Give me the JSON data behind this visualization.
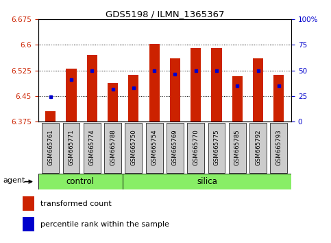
{
  "title": "GDS5198 / ILMN_1365367",
  "samples": [
    "GSM665761",
    "GSM665771",
    "GSM665774",
    "GSM665788",
    "GSM665750",
    "GSM665754",
    "GSM665769",
    "GSM665770",
    "GSM665775",
    "GSM665785",
    "GSM665792",
    "GSM665793"
  ],
  "groups": [
    "control",
    "control",
    "control",
    "control",
    "silica",
    "silica",
    "silica",
    "silica",
    "silica",
    "silica",
    "silica",
    "silica"
  ],
  "red_values": [
    6.405,
    6.53,
    6.57,
    6.487,
    6.513,
    6.602,
    6.56,
    6.59,
    6.59,
    6.508,
    6.56,
    6.513
  ],
  "blue_values": [
    6.447,
    6.498,
    6.524,
    6.47,
    6.474,
    6.524,
    6.515,
    6.524,
    6.524,
    6.479,
    6.524,
    6.479
  ],
  "ymin": 6.375,
  "ymax": 6.675,
  "yticks": [
    6.375,
    6.45,
    6.525,
    6.6,
    6.675
  ],
  "y2ticks": [
    0,
    25,
    50,
    75,
    100
  ],
  "bar_color": "#cc2200",
  "dot_color": "#0000cc",
  "group_color": "#88ee66",
  "tick_box_color": "#cccccc",
  "bg_color": "#ffffff",
  "bar_width": 0.5,
  "agent_label": "agent",
  "legend_red": "transformed count",
  "legend_blue": "percentile rank within the sample"
}
